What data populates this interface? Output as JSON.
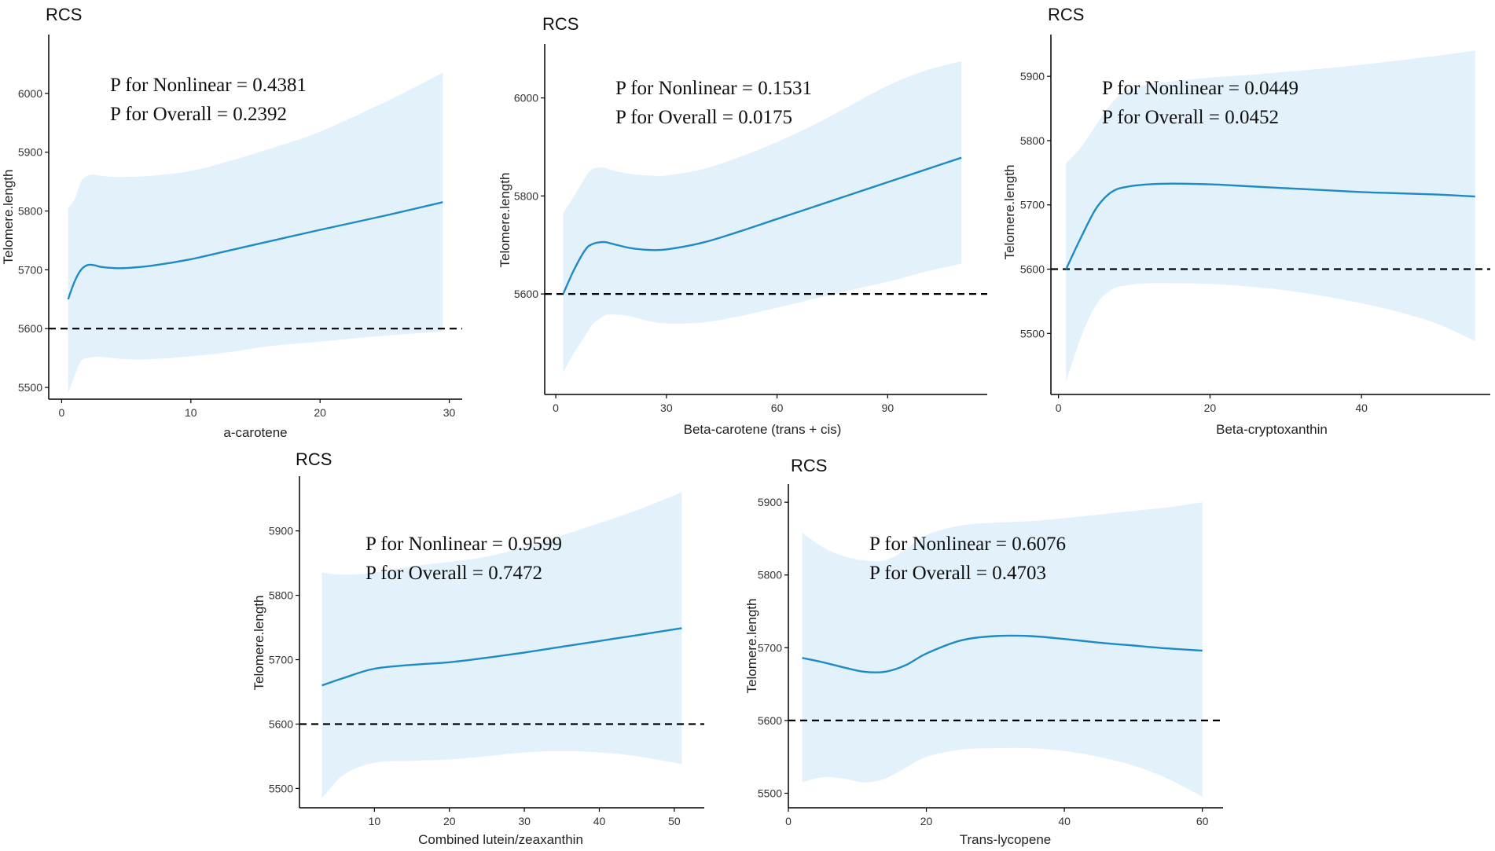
{
  "figure": {
    "line_color": "#1f8bc4",
    "band_color": "#e3f1fb",
    "ref_line_color": "#000000"
  },
  "chart_data": [
    {
      "type": "line",
      "title": "RCS",
      "xlabel": "a-carotene",
      "ylabel": "Telomere.length",
      "xlim": [
        -1,
        31
      ],
      "ylim": [
        5480,
        6100
      ],
      "xticks": [
        0,
        10,
        20,
        30
      ],
      "yticks": [
        5500,
        5600,
        5700,
        5800,
        5900,
        6000
      ],
      "reference_y": 5600,
      "annotations": [
        "P for Nonlinear = 0.4381",
        "P for Overall = 0.2392"
      ],
      "x": [
        0.5,
        1.0,
        1.5,
        2.0,
        2.5,
        3,
        4,
        5,
        7,
        10,
        13,
        16,
        20,
        25,
        29.5
      ],
      "y": [
        5650,
        5680,
        5700,
        5708,
        5708,
        5705,
        5703,
        5703,
        5707,
        5718,
        5733,
        5748,
        5768,
        5792,
        5815
      ],
      "lower": [
        5490,
        5520,
        5545,
        5550,
        5552,
        5552,
        5550,
        5548,
        5548,
        5553,
        5560,
        5570,
        5578,
        5588,
        5595
      ],
      "upper": [
        5805,
        5820,
        5850,
        5860,
        5862,
        5860,
        5858,
        5858,
        5860,
        5868,
        5885,
        5905,
        5935,
        5985,
        6035
      ]
    },
    {
      "type": "line",
      "title": "RCS",
      "xlabel": "Beta-carotene (trans + cis)",
      "ylabel": "Telomere.length",
      "xlim": [
        -3,
        117
      ],
      "ylim": [
        5395,
        6110
      ],
      "xticks": [
        0,
        30,
        60,
        90
      ],
      "yticks": [
        5600,
        5800,
        6000
      ],
      "reference_y": 5600,
      "annotations": [
        "P for Nonlinear = 0.1531",
        "P for Overall = 0.0175"
      ],
      "x": [
        2,
        5,
        8,
        10,
        13,
        15,
        20,
        25,
        30,
        40,
        50,
        60,
        70,
        80,
        90,
        100,
        110
      ],
      "y": [
        5600,
        5650,
        5690,
        5702,
        5706,
        5703,
        5694,
        5690,
        5691,
        5705,
        5728,
        5753,
        5778,
        5803,
        5828,
        5853,
        5878
      ],
      "lower": [
        5440,
        5480,
        5515,
        5538,
        5555,
        5558,
        5555,
        5545,
        5540,
        5542,
        5555,
        5572,
        5590,
        5608,
        5625,
        5645,
        5662
      ],
      "upper": [
        5765,
        5800,
        5838,
        5855,
        5858,
        5853,
        5845,
        5842,
        5842,
        5855,
        5880,
        5910,
        5945,
        5985,
        6025,
        6055,
        6075
      ]
    },
    {
      "type": "line",
      "title": "RCS",
      "xlabel": "Beta-cryptoxanthin",
      "ylabel": "Telomere.length",
      "xlim": [
        -1,
        57
      ],
      "ylim": [
        5405,
        5965
      ],
      "xticks": [
        0,
        20,
        40
      ],
      "yticks": [
        5500,
        5600,
        5700,
        5800,
        5900
      ],
      "reference_y": 5600,
      "annotations": [
        "P for Nonlinear = 0.0449",
        "P for Overall = 0.0452"
      ],
      "x": [
        1,
        3,
        5,
        7,
        9,
        12,
        15,
        20,
        25,
        30,
        35,
        40,
        45,
        50,
        55
      ],
      "y": [
        5600,
        5650,
        5695,
        5720,
        5728,
        5732,
        5733,
        5732,
        5729,
        5726,
        5723,
        5720,
        5718,
        5716,
        5713
      ],
      "lower": [
        5425,
        5495,
        5545,
        5568,
        5575,
        5578,
        5578,
        5577,
        5573,
        5567,
        5558,
        5547,
        5533,
        5515,
        5488
      ],
      "upper": [
        5765,
        5790,
        5825,
        5858,
        5878,
        5888,
        5892,
        5898,
        5902,
        5907,
        5912,
        5918,
        5925,
        5932,
        5940
      ]
    },
    {
      "type": "line",
      "title": "RCS",
      "xlabel": "Combined lutein/zeaxanthin",
      "ylabel": "Telomere.length",
      "xlim": [
        0,
        54
      ],
      "ylim": [
        5470,
        5985
      ],
      "xticks": [
        10,
        20,
        30,
        40,
        50
      ],
      "yticks": [
        5500,
        5600,
        5700,
        5800,
        5900
      ],
      "reference_y": 5600,
      "annotations": [
        "P for Nonlinear = 0.9599",
        "P for Overall = 0.7472"
      ],
      "x": [
        3,
        6,
        10,
        15,
        20,
        25,
        30,
        35,
        40,
        45,
        51
      ],
      "y": [
        5660,
        5672,
        5686,
        5692,
        5696,
        5703,
        5711,
        5720,
        5729,
        5738,
        5749
      ],
      "lower": [
        5485,
        5522,
        5540,
        5543,
        5545,
        5550,
        5556,
        5558,
        5556,
        5550,
        5538
      ],
      "upper": [
        5835,
        5832,
        5835,
        5845,
        5852,
        5860,
        5875,
        5893,
        5912,
        5932,
        5960
      ]
    },
    {
      "type": "line",
      "title": "RCS",
      "xlabel": "Trans-lycopene",
      "ylabel": "Telomere.length",
      "xlim": [
        0,
        63
      ],
      "ylim": [
        5480,
        5925
      ],
      "xticks": [
        0,
        20,
        40,
        60
      ],
      "yticks": [
        5500,
        5600,
        5700,
        5800,
        5900
      ],
      "reference_y": 5600,
      "annotations": [
        "P for Nonlinear = 0.6076",
        "P for Overall = 0.4703"
      ],
      "x": [
        2,
        5,
        8,
        11,
        14,
        17,
        20,
        25,
        30,
        35,
        40,
        45,
        50,
        55,
        60
      ],
      "y": [
        5686,
        5680,
        5673,
        5667,
        5667,
        5676,
        5692,
        5710,
        5716,
        5716,
        5712,
        5707,
        5703,
        5699,
        5696
      ],
      "lower": [
        5515,
        5522,
        5520,
        5515,
        5520,
        5535,
        5550,
        5560,
        5562,
        5562,
        5558,
        5550,
        5538,
        5520,
        5495
      ],
      "upper": [
        5858,
        5838,
        5826,
        5820,
        5820,
        5835,
        5855,
        5868,
        5872,
        5874,
        5878,
        5883,
        5888,
        5893,
        5900
      ]
    }
  ]
}
